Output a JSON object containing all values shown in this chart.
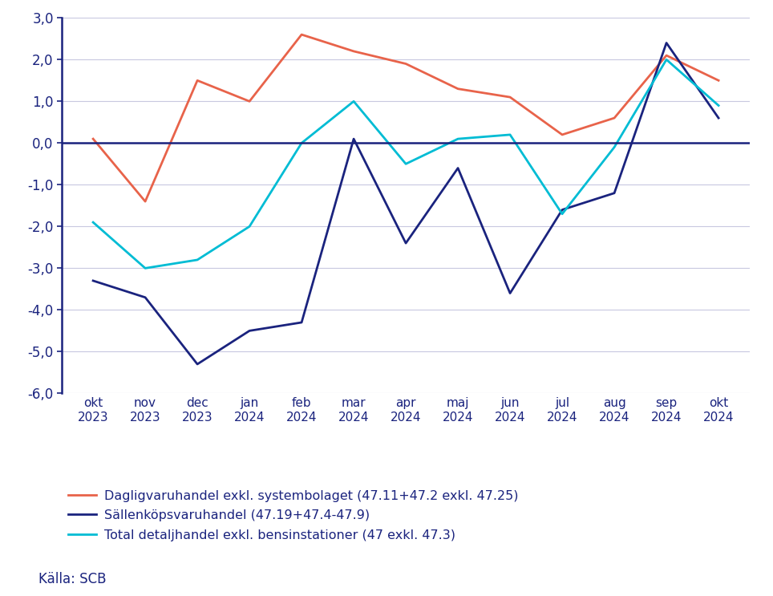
{
  "x_labels": [
    "okt\n2023",
    "nov\n2023",
    "dec\n2023",
    "jan\n2024",
    "feb\n2024",
    "mar\n2024",
    "apr\n2024",
    "maj\n2024",
    "jun\n2024",
    "jul\n2024",
    "aug\n2024",
    "sep\n2024",
    "okt\n2024"
  ],
  "series": {
    "daglig": {
      "label": "Dagligvaruhandel exkl. systembolaget (47.11+47.2 exkl. 47.25)",
      "color": "#E8634A",
      "values": [
        0.1,
        -1.4,
        1.5,
        1.0,
        2.6,
        2.2,
        1.9,
        1.3,
        1.1,
        0.2,
        0.6,
        2.1,
        1.5
      ]
    },
    "sallan": {
      "label": "Sällenköpsvaruhandel (47.19+47.4-47.9)",
      "color": "#1A237E",
      "values": [
        -3.3,
        -3.7,
        -5.3,
        -4.5,
        -4.3,
        0.1,
        -2.4,
        -0.6,
        -3.6,
        -1.6,
        -1.2,
        2.4,
        0.6
      ]
    },
    "total": {
      "label": "Total detaljhandel exkl. bensinstationer (47 exkl. 47.3)",
      "color": "#00BCD4",
      "values": [
        -1.9,
        -3.0,
        -2.8,
        -2.0,
        0.0,
        1.0,
        -0.5,
        0.1,
        0.2,
        -1.7,
        -0.1,
        2.0,
        0.9
      ]
    }
  },
  "ylim": [
    -6.0,
    3.0
  ],
  "yticks": [
    -6.0,
    -5.0,
    -4.0,
    -3.0,
    -2.0,
    -1.0,
    0.0,
    1.0,
    2.0,
    3.0
  ],
  "source_text": "Källa: SCB",
  "background_color": "#ffffff",
  "grid_color": "#c8c8e0",
  "axis_color": "#1A237E",
  "zero_line_color": "#1A237E",
  "label_color": "#1A237E",
  "legend_label": "Sällanкöpsvaruhandel (47.19+47.4-47.9)"
}
